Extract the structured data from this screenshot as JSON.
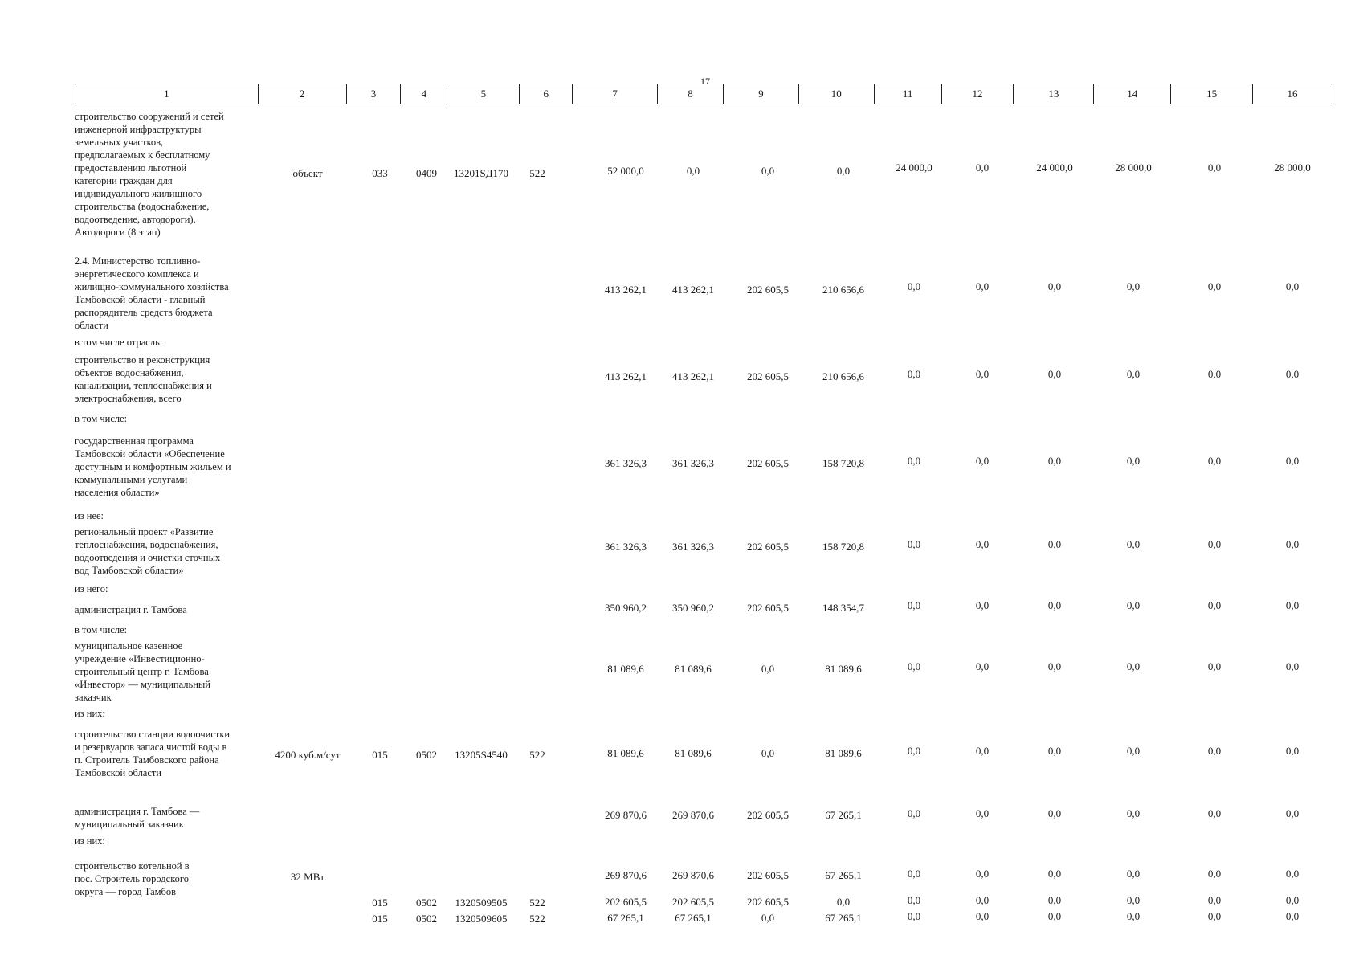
{
  "page_number": "17",
  "header_columns": [
    "1",
    "2",
    "3",
    "4",
    "5",
    "6",
    "7",
    "8",
    "9",
    "10",
    "11",
    "12",
    "13",
    "14",
    "15",
    "16"
  ],
  "rows": [
    {
      "description": "строительство сооружений и сетей\nинженерной инфраструктуры\nземельных участков,\nпредполагаемых к бесплатному\nпредоставлению льготной\nкатегории граждан для\nиндивидуального жилищного\nстроительства (водоснабжение,\nводоотведение, автодороги).\nАвтодороги (8 этап)",
      "unit": "объект",
      "c3": "033",
      "c4": "0409",
      "c5": "13201SД170",
      "c6": "522",
      "values": [
        "52 000,0",
        "0,0",
        "0,0",
        "0,0",
        "24 000,0",
        "0,0",
        "24 000,0",
        "28 000,0",
        "0,0",
        "28 000,0"
      ]
    },
    {
      "description": "2.4. Министерство топливно-\nэнергетического комплекса и\nжилищно-коммунального хозяйства\nТамбовской области - главный\nраспорядитель средств бюджета\nобласти",
      "values": [
        "413 262,1",
        "413 262,1",
        "202 605,5",
        "210 656,6",
        "0,0",
        "0,0",
        "0,0",
        "0,0",
        "0,0",
        "0,0"
      ]
    },
    {
      "description": "строительство и реконструкция\nобъектов водоснабжения,\nканализации, теплоснабжения и\nэлектроснабжения, всего",
      "values": [
        "413 262,1",
        "413 262,1",
        "202 605,5",
        "210 656,6",
        "0,0",
        "0,0",
        "0,0",
        "0,0",
        "0,0",
        "0,0"
      ]
    },
    {
      "description": "государственная программа\nТамбовской области «Обеспечение\nдоступным и комфортным жильем и\nкоммунальными услугами\nнаселения области»",
      "values": [
        "361 326,3",
        "361 326,3",
        "202 605,5",
        "158 720,8",
        "0,0",
        "0,0",
        "0,0",
        "0,0",
        "0,0",
        "0,0"
      ]
    },
    {
      "description": "региональный проект «Развитие\nтеплоснабжения, водоснабжения,\nводоотведения и очистки сточных\nвод Тамбовской области»",
      "values": [
        "361 326,3",
        "361 326,3",
        "202 605,5",
        "158 720,8",
        "0,0",
        "0,0",
        "0,0",
        "0,0",
        "0,0",
        "0,0"
      ]
    },
    {
      "description": "администрация г. Тамбова",
      "values": [
        "350 960,2",
        "350 960,2",
        "202 605,5",
        "148 354,7",
        "0,0",
        "0,0",
        "0,0",
        "0,0",
        "0,0",
        "0,0"
      ]
    },
    {
      "description": "муниципальное казенное\nучреждение «Инвестиционно-\nстроительный центр г. Тамбова\n«Инвестор» — муниципальный\nзаказчик",
      "values": [
        "81 089,6",
        "81 089,6",
        "0,0",
        "81 089,6",
        "0,0",
        "0,0",
        "0,0",
        "0,0",
        "0,0",
        "0,0"
      ]
    },
    {
      "description": "строительство станции водоочистки\nи резервуаров запаса чистой воды в\nп. Строитель Тамбовского района\nТамбовской области",
      "unit": "4200 куб.м/сут",
      "c3": "015",
      "c4": "0502",
      "c5": "13205S4540",
      "c6": "522",
      "values": [
        "81 089,6",
        "81 089,6",
        "0,0",
        "81 089,6",
        "0,0",
        "0,0",
        "0,0",
        "0,0",
        "0,0",
        "0,0"
      ]
    },
    {
      "description": "администрация г. Тамбова —\nмуниципальный заказчик",
      "values": [
        "269 870,6",
        "269 870,6",
        "202 605,5",
        "67 265,1",
        "0,0",
        "0,0",
        "0,0",
        "0,0",
        "0,0",
        "0,0"
      ]
    },
    {
      "description": "строительство котельной в\nпос. Строитель городского\nокруга — город Тамбов",
      "unit": "32 МВт",
      "values": [
        "269 870,6",
        "269 870,6",
        "202 605,5",
        "67 265,1",
        "0,0",
        "0,0",
        "0,0",
        "0,0",
        "0,0",
        "0,0"
      ]
    },
    {
      "description": "",
      "c3": "015",
      "c4": "0502",
      "c5": "1320509505",
      "c6": "522",
      "values": [
        "202 605,5",
        "202 605,5",
        "202 605,5",
        "0,0",
        "0,0",
        "0,0",
        "0,0",
        "0,0",
        "0,0",
        "0,0"
      ]
    },
    {
      "description": "",
      "c3": "015",
      "c4": "0502",
      "c5": "1320509605",
      "c6": "522",
      "values": [
        "67 265,1",
        "67 265,1",
        "0,0",
        "67 265,1",
        "0,0",
        "0,0",
        "0,0",
        "0,0",
        "0,0",
        "0,0"
      ]
    }
  ],
  "subheadings": [
    "в том числе отрасль:",
    "в том числе:",
    "из нее:",
    "из него:",
    "в том числе:",
    "из них:",
    "из них:"
  ]
}
